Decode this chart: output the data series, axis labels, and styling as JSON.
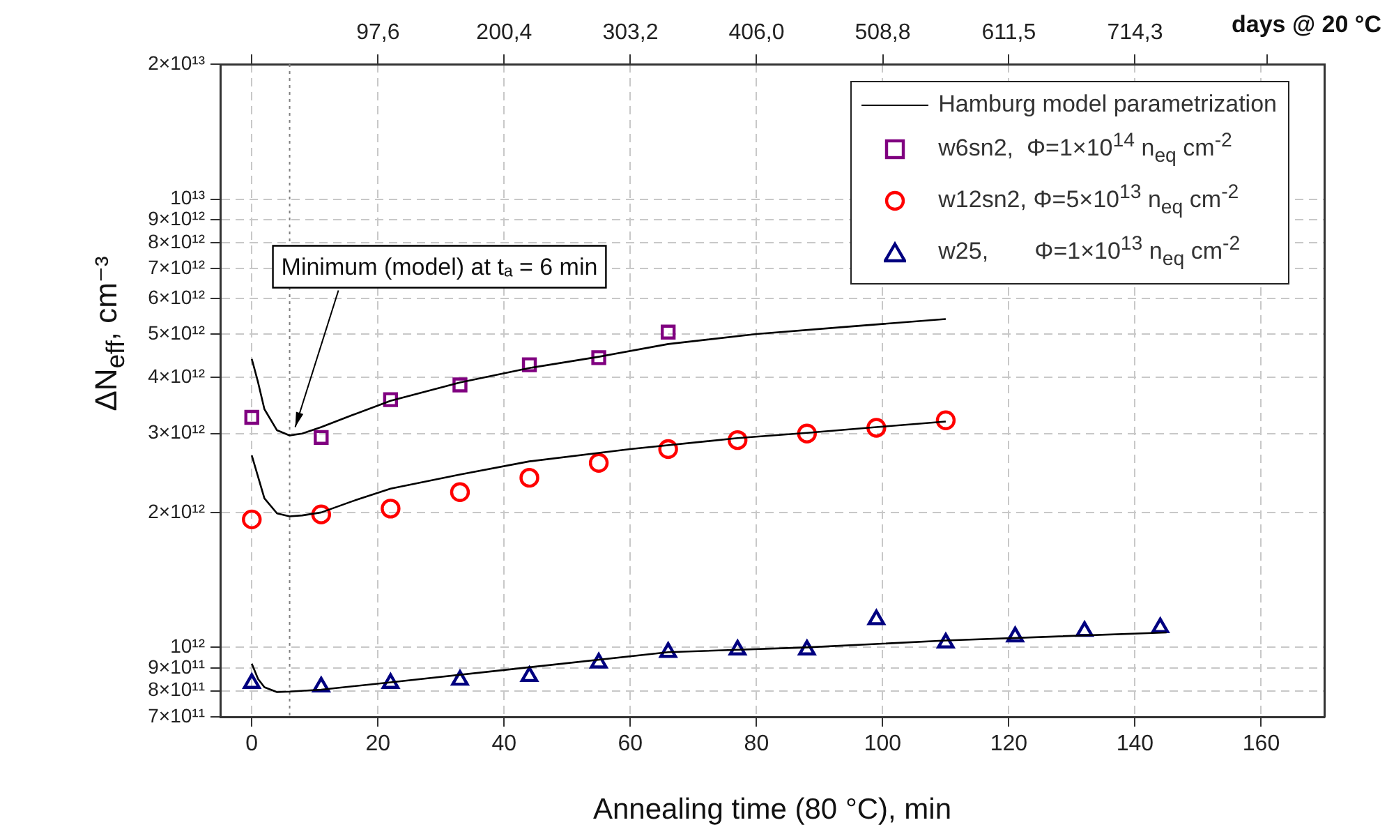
{
  "chart_data": {
    "type": "scatter",
    "xlabel": "Annealing time (80 °C), min",
    "ylabel": "ΔN$_{eff}$, cm⁻³",
    "x2label": "days @ 20 °C",
    "xlim": [
      -5,
      170
    ],
    "xticks": [
      0,
      20,
      40,
      60,
      80,
      100,
      120,
      140,
      160
    ],
    "x2lim": [
      -30.9,
      868.5
    ],
    "x2ticks": [
      {
        "value": -5.2,
        "label": null
      },
      {
        "value": 97.6,
        "label": "97,6"
      },
      {
        "value": 200.4,
        "label": "200,4"
      },
      {
        "value": 303.2,
        "label": "303,2"
      },
      {
        "value": 406.0,
        "label": "406,0"
      },
      {
        "value": 508.8,
        "label": "508,8"
      },
      {
        "value": 611.5,
        "label": "611,5"
      },
      {
        "value": 714.3,
        "label": "714,3"
      },
      {
        "value": 822.1,
        "label": null
      }
    ],
    "ylim": [
      700000000000.0,
      20000000000000.0
    ],
    "yticks": [
      {
        "value": 700000000000.0,
        "label": "7×10¹¹"
      },
      {
        "value": 800000000000.0,
        "label": "8×10¹¹"
      },
      {
        "value": 900000000000.0,
        "label": "9×10¹¹"
      },
      {
        "value": 1000000000000.0,
        "label": "10¹²"
      },
      {
        "value": 2000000000000.0,
        "label": "2×10¹²"
      },
      {
        "value": 3000000000000.0,
        "label": "3×10¹²"
      },
      {
        "value": 4000000000000.0,
        "label": "4×10¹²"
      },
      {
        "value": 5000000000000.0,
        "label": "5×10¹²"
      },
      {
        "value": 6000000000000.0,
        "label": "6×10¹²"
      },
      {
        "value": 7000000000000.0,
        "label": "7×10¹²"
      },
      {
        "value": 8000000000000.0,
        "label": "8×10¹²"
      },
      {
        "value": 9000000000000.0,
        "label": "9×10¹²"
      },
      {
        "value": 10000000000000.0,
        "label": "10¹³"
      },
      {
        "value": 20000000000000.0,
        "label": "2×10¹³"
      }
    ],
    "log": "y",
    "grid": true,
    "legend": "top right",
    "ref_lines": [
      {
        "axis": "x",
        "value": 6,
        "line_style": "dotted",
        "color": "#808080"
      }
    ],
    "annotations": [
      {
        "text": "Minimum (model) at tₐ = 6 min",
        "x": 6,
        "y": 2970000000000.0
      }
    ],
    "series": [
      {
        "name": "Hamburg model parametrization",
        "type": "line",
        "color": "#000000",
        "marker": "none",
        "line_style": "solid",
        "x": [
          0,
          1,
          2,
          4,
          6,
          8,
          11,
          16,
          22,
          33,
          44,
          55,
          66,
          80,
          95,
          110
        ],
        "values": [
          4400000000000.0,
          3900000000000.0,
          3400000000000.0,
          3050000000000.0,
          2970000000000.0,
          3000000000000.0,
          3100000000000.0,
          3300000000000.0,
          3550000000000.0,
          3900000000000.0,
          4200000000000.0,
          4450000000000.0,
          4750000000000.0,
          5000000000000.0,
          5200000000000.0,
          5400000000000.0
        ]
      },
      {
        "name": "w6sn2,  Φ=1×10$^{14}$ n$_{eq}$ cm$^{-2}$",
        "color": "#800080",
        "marker": "square",
        "x": [
          0,
          11,
          22,
          33,
          44,
          55,
          66
        ],
        "values": [
          3260000000000.0,
          2940000000000.0,
          3570000000000.0,
          3850000000000.0,
          4270000000000.0,
          4430000000000.0,
          5050000000000.0
        ]
      },
      {
        "type": "line",
        "color": "#000000",
        "marker": "none",
        "line_style": "solid",
        "x": [
          0,
          1,
          2,
          4,
          6,
          8,
          11,
          16,
          22,
          33,
          44,
          60,
          77,
          88,
          99,
          110
        ],
        "values": [
          2680000000000.0,
          2400000000000.0,
          2150000000000.0,
          1990000000000.0,
          1960000000000.0,
          1970000000000.0,
          2000000000000.0,
          2120000000000.0,
          2260000000000.0,
          2430000000000.0,
          2600000000000.0,
          2770000000000.0,
          2930000000000.0,
          3010000000000.0,
          3100000000000.0,
          3190000000000.0
        ]
      },
      {
        "name": "w12sn2, Φ=5×10$^{13}$ n$_{eq}$ cm$^{-2}$",
        "color": "#ff0000",
        "marker": "circle",
        "x": [
          0,
          11,
          22,
          33,
          44,
          55,
          66,
          77,
          88,
          99,
          110
        ],
        "values": [
          1930000000000.0,
          1980000000000.0,
          2040000000000.0,
          2220000000000.0,
          2390000000000.0,
          2580000000000.0,
          2770000000000.0,
          2900000000000.0,
          3000000000000.0,
          3090000000000.0,
          3210000000000.0
        ]
      },
      {
        "type": "line",
        "color": "#000000",
        "marker": "none",
        "line_style": "solid",
        "x": [
          0,
          1,
          2,
          4,
          6,
          11,
          22,
          44,
          66,
          88,
          110,
          145
        ],
        "values": [
          920000000000.0,
          850000000000.0,
          815000000000.0,
          795000000000.0,
          797000000000.0,
          805000000000.0,
          836000000000.0,
          903000000000.0,
          976000000000.0,
          1000000000000.0,
          1036000000000.0,
          1080000000000.0
        ]
      },
      {
        "name": "w25,       Φ=1×10$^{13}$ n$_{eq}$ cm$^{-2}$",
        "color": "#000080",
        "marker": "triangle",
        "x": [
          0,
          11,
          22,
          33,
          44,
          55,
          66,
          77,
          88,
          99,
          110,
          121,
          132,
          144
        ],
        "values": [
          832000000000.0,
          817000000000.0,
          832000000000.0,
          846000000000.0,
          862000000000.0,
          924000000000.0,
          976000000000.0,
          988000000000.0,
          988000000000.0,
          1154000000000.0,
          1024000000000.0,
          1057000000000.0,
          1087000000000.0,
          1108000000000.0
        ]
      }
    ]
  }
}
